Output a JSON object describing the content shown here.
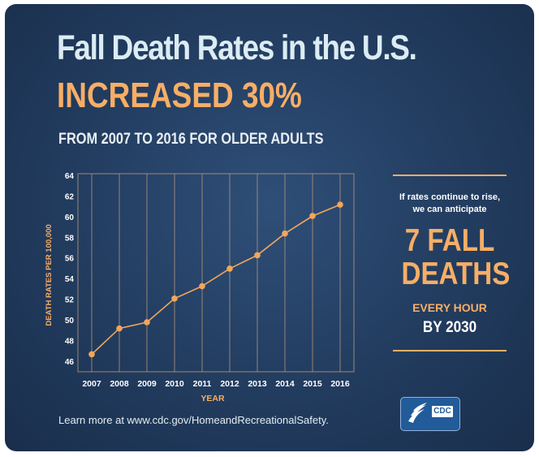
{
  "header": {
    "title": "Fall Death Rates in the U.S.",
    "highlight": "INCREASED 30%",
    "subtitle": "FROM 2007 TO 2016 FOR OLDER ADULTS"
  },
  "chart_data": {
    "type": "line",
    "title": "",
    "xlabel": "YEAR",
    "ylabel": "DEATH RATES PER 100,000",
    "x": [
      2007,
      2008,
      2009,
      2010,
      2011,
      2012,
      2013,
      2014,
      2015,
      2016
    ],
    "series": [
      {
        "values": [
          46.7,
          49.2,
          49.8,
          52.1,
          53.3,
          55.0,
          56.3,
          58.4,
          60.1,
          61.2
        ]
      }
    ],
    "yticks": [
      46,
      48,
      50,
      52,
      54,
      56,
      58,
      60,
      62,
      64
    ],
    "ylim": [
      45,
      64.2
    ],
    "grid": "vertical",
    "legend": "none",
    "colors": {
      "line": "#f2a65a",
      "label": "#f7ae66",
      "tick": "#ffffff",
      "grid": "#c7a07b"
    }
  },
  "side_panel": {
    "intro_line1": "If rates continue to rise,",
    "intro_line2": "we can anticipate",
    "big_line1": "7 FALL",
    "big_line2": "DEATHS",
    "every": "EVERY HOUR",
    "by": "BY 2030"
  },
  "footer": {
    "text": "Learn more at www.cdc.gov/HomeandRecreationalSafety."
  },
  "logo": {
    "text": "CDC",
    "icon": "hhs-eagle-icon"
  },
  "colors": {
    "background": "#243f63",
    "accent": "#f7ae66",
    "title": "#dcecf4"
  }
}
